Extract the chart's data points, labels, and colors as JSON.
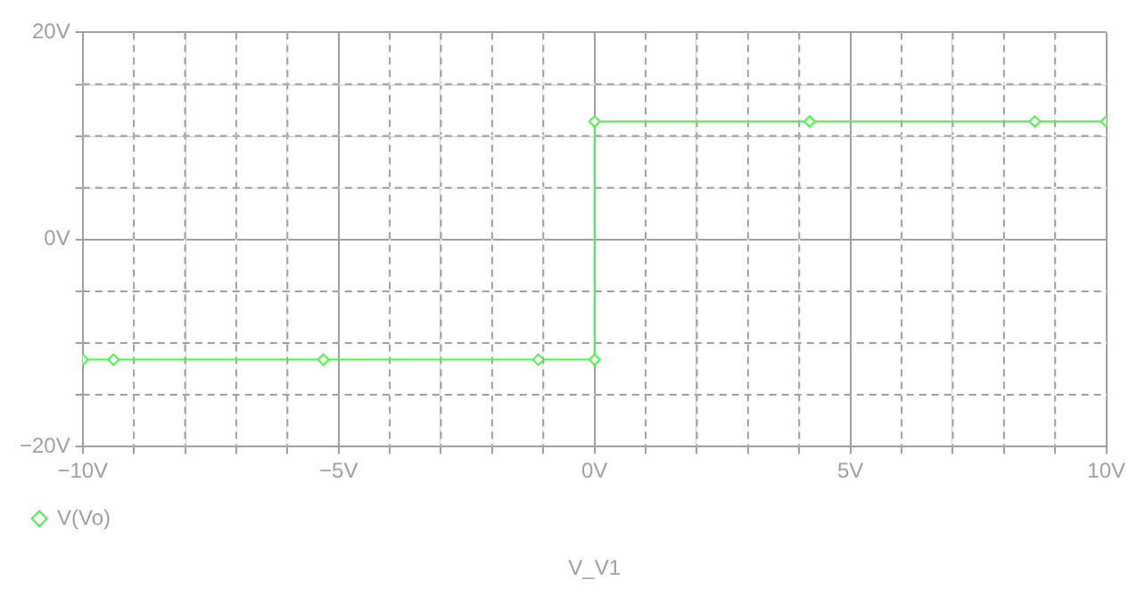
{
  "chart_data": {
    "type": "line",
    "xlabel": "V_V1",
    "x": [
      -10,
      -9.4,
      -5.3,
      -1.1,
      0,
      0,
      4.2,
      8.6,
      10
    ],
    "series": [
      {
        "name": "V(Vo)",
        "color": "#40ff40",
        "values": [
          -11.6,
          -11.6,
          -11.6,
          -11.6,
          -11.6,
          11.4,
          11.4,
          11.4,
          11.4
        ]
      }
    ],
    "xlim": [
      -10,
      10
    ],
    "ylim": [
      -20,
      20
    ],
    "xticks": [
      {
        "value": -10,
        "label": "−10V"
      },
      {
        "value": -9,
        "label": null
      },
      {
        "value": -8,
        "label": null
      },
      {
        "value": -7,
        "label": null
      },
      {
        "value": -6,
        "label": null
      },
      {
        "value": -5,
        "label": "−5V"
      },
      {
        "value": -4,
        "label": null
      },
      {
        "value": -3,
        "label": null
      },
      {
        "value": -2,
        "label": null
      },
      {
        "value": -1,
        "label": null
      },
      {
        "value": 0,
        "label": "0V"
      },
      {
        "value": 1,
        "label": null
      },
      {
        "value": 2,
        "label": null
      },
      {
        "value": 3,
        "label": null
      },
      {
        "value": 4,
        "label": null
      },
      {
        "value": 5,
        "label": "5V"
      },
      {
        "value": 6,
        "label": null
      },
      {
        "value": 7,
        "label": null
      },
      {
        "value": 8,
        "label": null
      },
      {
        "value": 9,
        "label": null
      },
      {
        "value": 10,
        "label": "10V"
      }
    ],
    "yticks": [
      {
        "value": -20,
        "label": "−20V"
      },
      {
        "value": -15,
        "label": null
      },
      {
        "value": -10,
        "label": null
      },
      {
        "value": -5,
        "label": null
      },
      {
        "value": 0,
        "label": "0V"
      },
      {
        "value": 5,
        "label": null
      },
      {
        "value": 10,
        "label": null
      },
      {
        "value": 15,
        "label": null
      },
      {
        "value": 20,
        "label": "20V"
      }
    ],
    "grid": true,
    "legend": "bottom left",
    "marker": "diamond",
    "line_style": "solid"
  }
}
